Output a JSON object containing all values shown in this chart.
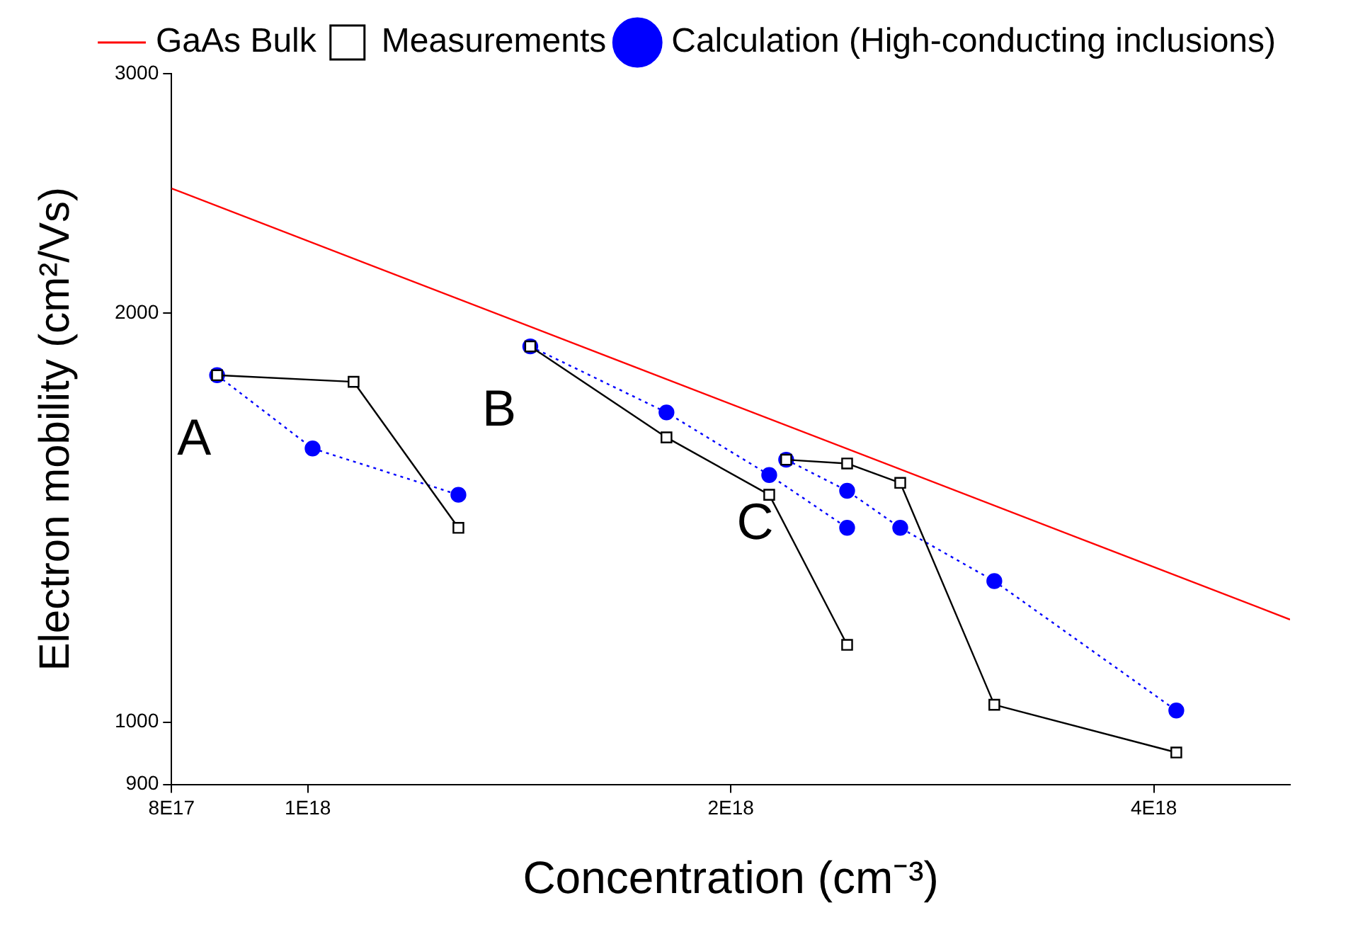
{
  "chart_data": {
    "type": "line",
    "xlabel": "Concentration (cm⁻³)",
    "ylabel": "Electron mobility (cm²/Vs)",
    "log": "xy",
    "grid": false,
    "legend": "top right",
    "xlim": [
      8e+17,
      5e+18
    ],
    "xticks": [
      {
        "value": 8e+17,
        "label": "8E17"
      },
      {
        "value": 1e+18,
        "label": "1E18"
      },
      {
        "value": 2e+18,
        "label": "2E18"
      },
      {
        "value": 4e+18,
        "label": "4E18"
      }
    ],
    "ylim": [
      900,
      3000
    ],
    "yticks": [
      900,
      1000,
      2000,
      3000
    ],
    "series": [
      {
        "name": "GaAs Bulk",
        "color": "#ff0000",
        "marker": "none",
        "line_style": "solid",
        "x": [
          8e+17,
          5e+18
        ],
        "values": [
          2470,
          1190
        ]
      },
      {
        "name": "Measurements",
        "color": "#000000",
        "marker": "square",
        "line_style": "solid",
        "x": [
          8.62e+17,
          1.078e+18,
          1.28e+18,
          null,
          1.44e+18,
          1.8e+18,
          2.13e+18,
          2.42e+18,
          null,
          2.19e+18,
          2.42e+18,
          2.64e+18,
          3.08e+18,
          4.15e+18
        ],
        "values": [
          1800,
          1780,
          1390,
          null,
          1890,
          1620,
          1470,
          1140,
          null,
          1560,
          1550,
          1500,
          1030,
          950
        ]
      },
      {
        "name": "Calculation (High-conducting inclusions)",
        "color": "#0000ff",
        "marker": "circle",
        "line_style": "dotted",
        "x": [
          8.62e+17,
          1.008e+18,
          1.28e+18,
          null,
          1.44e+18,
          1.8e+18,
          2.13e+18,
          2.42e+18,
          null,
          2.19e+18,
          2.42e+18,
          2.64e+18,
          3.08e+18,
          4.15e+18
        ],
        "values": [
          1800,
          1590,
          1470,
          null,
          1890,
          1690,
          1520,
          1390,
          null,
          1560,
          1480,
          1390,
          1270,
          1020
        ]
      }
    ],
    "annotations": [
      "A",
      "B",
      "C"
    ]
  }
}
